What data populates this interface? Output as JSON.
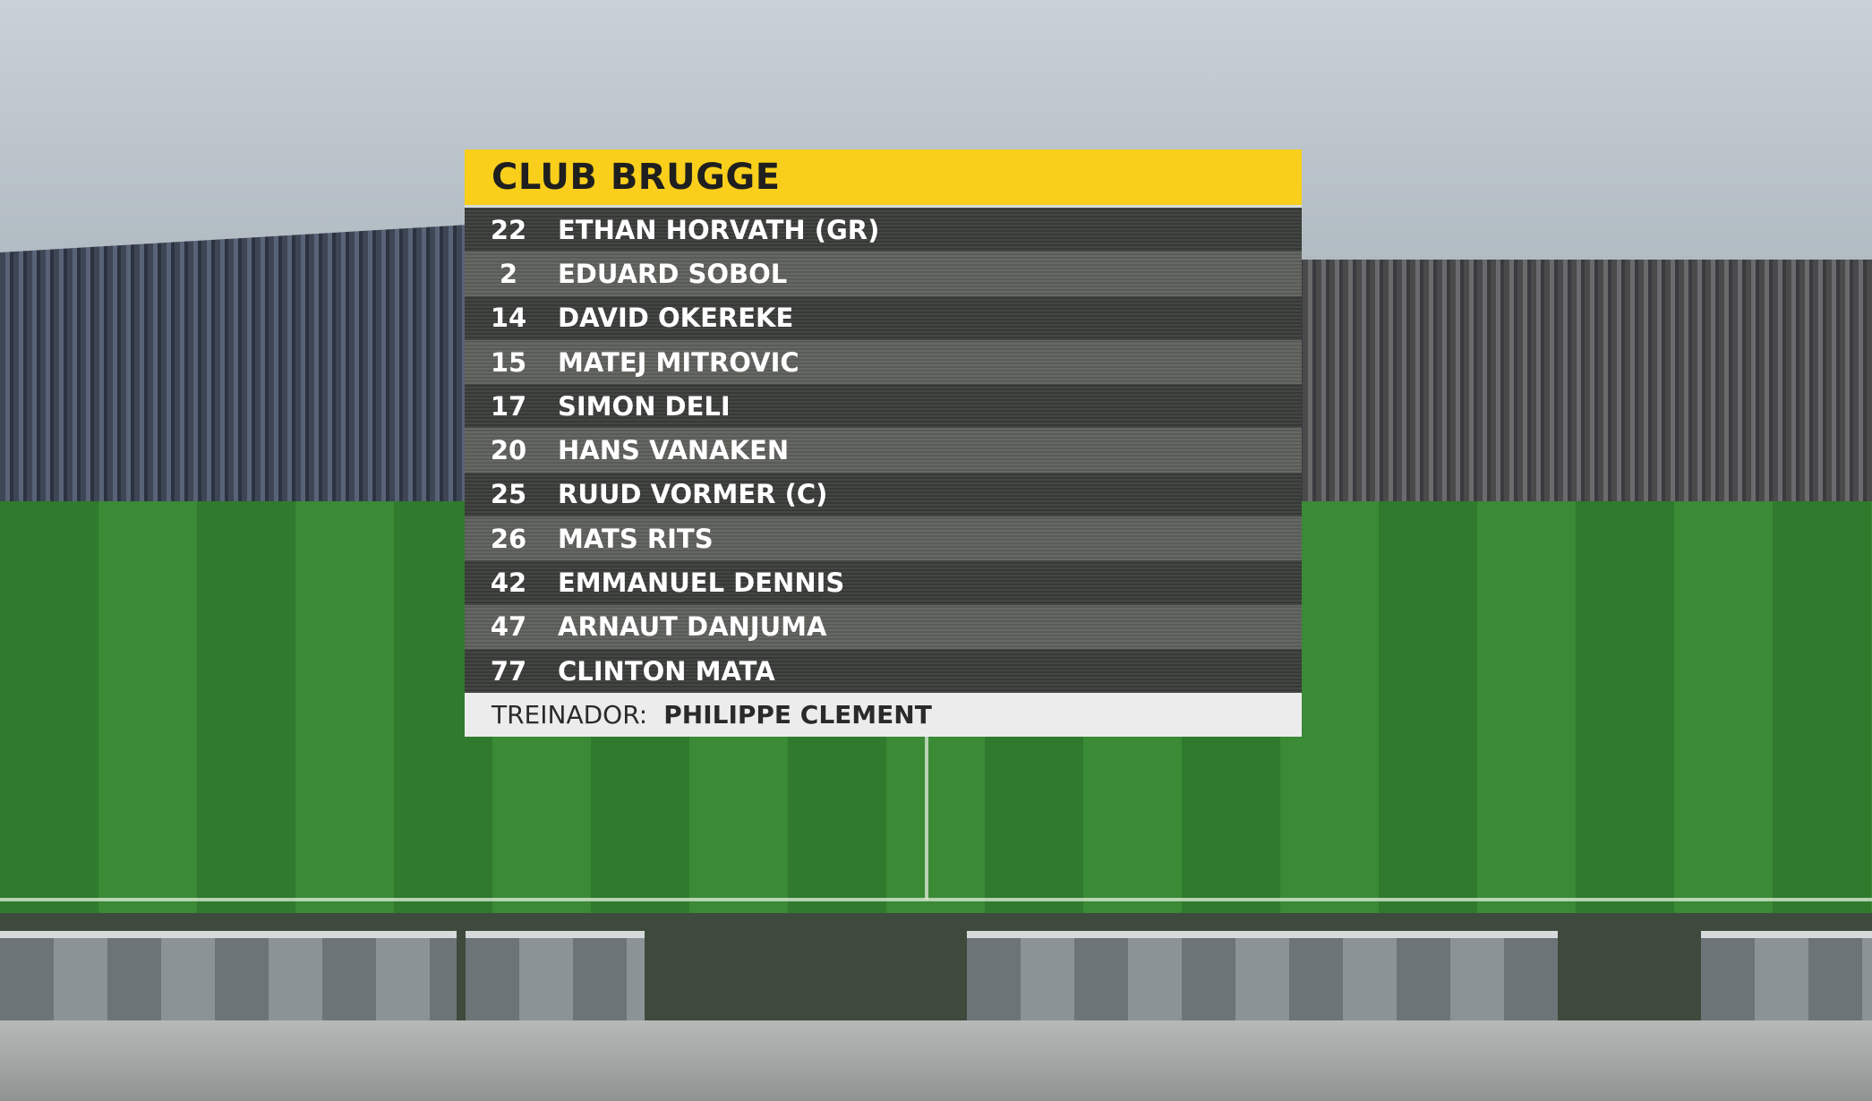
{
  "lineup": {
    "team": "CLUB BRUGGE",
    "players": [
      {
        "number": 22,
        "name": "ETHAN HORVATH (GR)"
      },
      {
        "number": 2,
        "name": "EDUARD SOBOL"
      },
      {
        "number": 14,
        "name": "DAVID OKEREKE"
      },
      {
        "number": 15,
        "name": "MATEJ MITROVIC"
      },
      {
        "number": 17,
        "name": "SIMON DELI"
      },
      {
        "number": 20,
        "name": "HANS VANAKEN"
      },
      {
        "number": 25,
        "name": "RUUD VORMER (C)"
      },
      {
        "number": 26,
        "name": "MATS RITS"
      },
      {
        "number": 42,
        "name": "EMMANUEL DENNIS"
      },
      {
        "number": 47,
        "name": "ARNAUT DANJUMA"
      },
      {
        "number": 77,
        "name": "CLINTON MATA"
      }
    ],
    "coach_label": "TREINADOR:",
    "coach_name": "PHILIPPE CLEMENT"
  }
}
